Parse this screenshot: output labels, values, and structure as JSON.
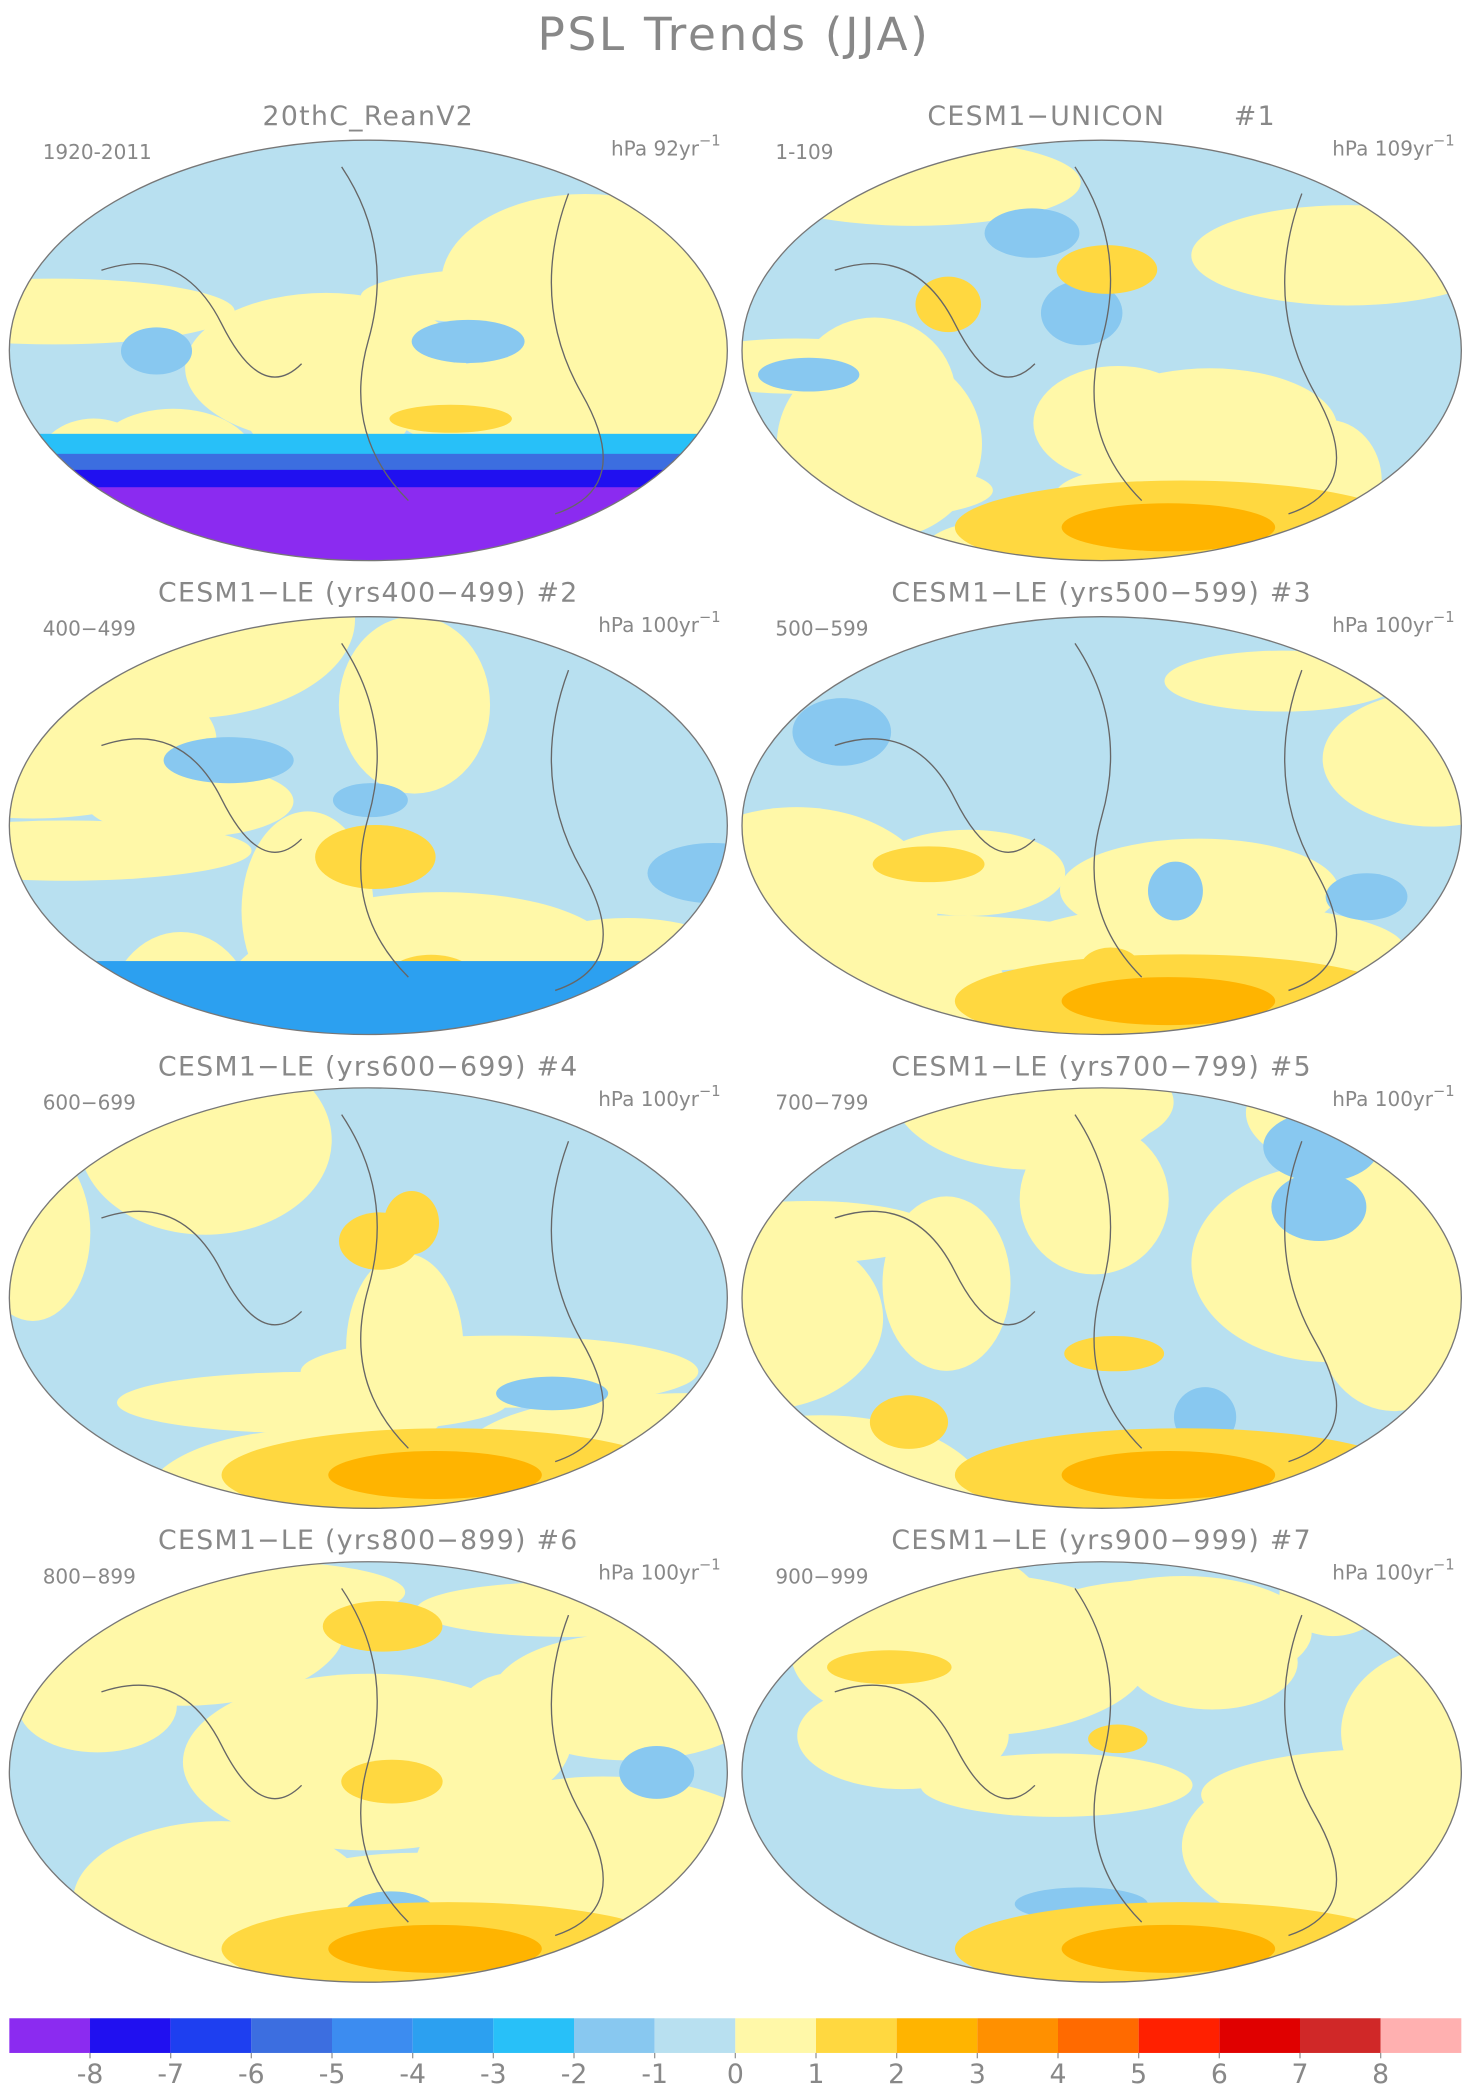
{
  "title": "PSL Trends (JJA)",
  "panels": [
    {
      "title": "20thC_ReanV2",
      "period": "1920-2011",
      "units": "hPa 92yr",
      "exponent": "−1"
    },
    {
      "title": "CESM1−UNICON       #1",
      "period": "1-109",
      "units": "hPa 109yr",
      "exponent": "−1"
    },
    {
      "title": "CESM1−LE (yrs400−499) #2",
      "period": "400−499",
      "units": "hPa 100yr",
      "exponent": "−1"
    },
    {
      "title": "CESM1−LE (yrs500−599) #3",
      "period": "500−599",
      "units": "hPa 100yr",
      "exponent": "−1"
    },
    {
      "title": "CESM1−LE (yrs600−699) #4",
      "period": "600−699",
      "units": "hPa 100yr",
      "exponent": "−1"
    },
    {
      "title": "CESM1−LE (yrs700−799) #5",
      "period": "700−799",
      "units": "hPa 100yr",
      "exponent": "−1"
    },
    {
      "title": "CESM1−LE (yrs800−899) #6",
      "period": "800−899",
      "units": "hPa 100yr",
      "exponent": "−1"
    },
    {
      "title": "CESM1−LE (yrs900−999) #7",
      "period": "900−999",
      "units": "hPa 100yr",
      "exponent": "−1"
    }
  ],
  "colorbar": {
    "colors": [
      "#8b2bf0",
      "#2010f0",
      "#1e3ff0",
      "#3c6ee0",
      "#3c8cf0",
      "#2ca0f0",
      "#28c0f8",
      "#88c8f0",
      "#b8e0f0",
      "#fff8a8",
      "#ffd840",
      "#ffb400",
      "#ff9000",
      "#ff6a00",
      "#ff2000",
      "#e00000",
      "#d02828",
      "#ffb0b0"
    ],
    "ticks": [
      -8,
      -7,
      -6,
      -5,
      -4,
      -3,
      -2,
      -1,
      0,
      1,
      2,
      3,
      4,
      5,
      6,
      7,
      8
    ]
  }
}
